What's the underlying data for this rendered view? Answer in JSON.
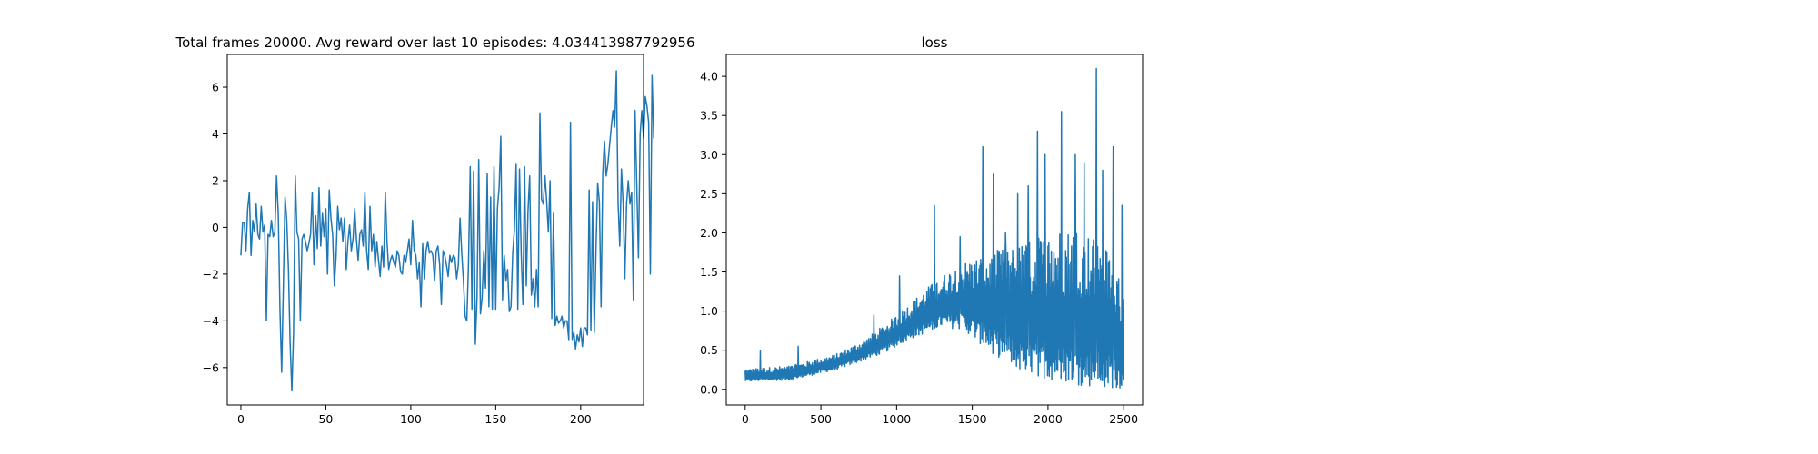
{
  "chart_data": [
    {
      "type": "line",
      "title": "Total frames 20000. Avg reward over last 10 episodes: 4.034413987792956",
      "xlabel": "",
      "ylabel": "",
      "xlim": [
        -8,
        237
      ],
      "ylim": [
        -7.6,
        7.4
      ],
      "xticks": [
        0,
        50,
        100,
        150,
        200
      ],
      "yticks": [
        -6,
        -4,
        -2,
        0,
        2,
        4,
        6
      ],
      "grid": false,
      "legend": "none",
      "color": "#1f77b4",
      "series": [
        {
          "values": [
            -1.2,
            0.2,
            0.2,
            -1.0,
            0.8,
            1.5,
            -1.2,
            0.3,
            -0.2,
            1.0,
            -0.3,
            -0.5,
            0.9,
            -0.2,
            0.1,
            -4.0,
            -0.3,
            -0.4,
            0.3,
            -0.4,
            -0.2,
            2.2,
            0.6,
            -3.5,
            -6.2,
            -2.5,
            1.3,
            0.3,
            -1.8,
            -5.0,
            -7.0,
            -4.5,
            2.2,
            -0.2,
            -0.5,
            -4.0,
            -0.5,
            -0.3,
            -0.6,
            -1.0,
            -0.7,
            -0.3,
            1.5,
            -1.6,
            0.5,
            -0.9,
            1.7,
            -0.8,
            0.6,
            -0.4,
            0.8,
            -2.0,
            1.6,
            0.4,
            -0.3,
            -2.5,
            -1.3,
            0.9,
            -0.1,
            0.4,
            -0.6,
            0.4,
            -1.8,
            -0.6,
            0.1,
            -1.0,
            -0.5,
            0.8,
            -0.5,
            -1.4,
            -0.3,
            -0.1,
            -0.8,
            1.5,
            -1.0,
            -1.8,
            0.9,
            -1.0,
            -0.3,
            -1.7,
            -0.6,
            -1.4,
            -2.1,
            -0.8,
            -1.7,
            1.5,
            -0.6,
            -1.8,
            -1.4,
            -1.2,
            -1.5,
            -1.7,
            -1.0,
            -1.2,
            -1.9,
            -2.0,
            -1.2,
            -1.5,
            -1.0,
            -0.5,
            -1.6,
            0.3,
            -1.0,
            -1.2,
            -2.2,
            -1.5,
            -3.4,
            -0.7,
            -2.2,
            -1.0,
            -0.6,
            -1.1,
            -1.0,
            -1.2,
            -2.3,
            -1.0,
            -0.8,
            -1.6,
            -3.3,
            -1.0,
            -1.2,
            -1.6,
            -2.1,
            -1.2,
            -1.5,
            -1.2,
            -1.3,
            -2.2,
            -1.6,
            0.4,
            -1.1,
            -2.3,
            -3.8,
            -4.0,
            -1.5,
            2.6,
            -3.5,
            2.4,
            -5.0,
            -3.0,
            2.9,
            -3.7,
            -3.0,
            -1.0,
            -2.6,
            2.3,
            -3.4,
            1.3,
            -3.5,
            2.6,
            -3.5,
            0.8,
            1.7,
            3.9,
            -3.1,
            -1.2,
            -2.3,
            -1.8,
            -3.6,
            -3.4,
            -1.1,
            -0.1,
            2.7,
            -3.5,
            2.5,
            -1.1,
            -3.3,
            2.6,
            -2.5,
            0.7,
            2.2,
            -2.9,
            -2.2,
            -3.4,
            -1.8,
            -3.4,
            4.9,
            1.2,
            1.0,
            2.2,
            1.1,
            -0.2,
            2.0,
            -3.9,
            0.6,
            -4.2,
            -3.8,
            -4.1,
            -4.0,
            -3.8,
            -4.3,
            -4.0,
            -4.0,
            -4.8,
            4.5,
            -4.8,
            -4.5,
            -5.2,
            -4.6,
            -4.9,
            -4.3,
            -5.1,
            -4.3,
            -4.3,
            -4.6,
            1.6,
            -4.4,
            1.1,
            -4.5,
            -1.0,
            1.9,
            1.1,
            -3.4,
            2.3,
            3.7,
            2.2,
            2.7,
            3.5,
            4.3,
            5.0,
            4.3,
            6.7,
            1.1,
            -0.8,
            2.5,
            1.0,
            -2.2,
            1.0,
            2.0,
            1.0,
            1.5,
            -3.1,
            5.0,
            1.8,
            -1.3,
            4.0,
            5.0,
            3.8,
            5.6,
            5.2,
            4.5,
            -2.0,
            6.5,
            3.8
          ]
        }
      ]
    },
    {
      "type": "line",
      "title": "loss",
      "xlabel": "",
      "ylabel": "",
      "xlim": [
        -125,
        2625
      ],
      "ylim": [
        -0.2,
        4.28
      ],
      "xticks": [
        0,
        500,
        1000,
        1500,
        2000,
        2500
      ],
      "yticks": [
        "0.0",
        "0.5",
        "1.0",
        "1.5",
        "2.0",
        "2.5",
        "3.0",
        "3.5",
        "4.0"
      ],
      "grid": false,
      "legend": "none",
      "color": "#1f77b4",
      "series": [
        {
          "x_range": [
            0,
            2500
          ],
          "baseline": [
            [
              0,
              0.1
            ],
            [
              300,
              0.12
            ],
            [
              600,
              0.25
            ],
            [
              900,
              0.45
            ],
            [
              1100,
              0.65
            ],
            [
              1300,
              0.8
            ],
            [
              1450,
              0.75
            ],
            [
              1600,
              0.5
            ],
            [
              1800,
              0.25
            ],
            [
              2000,
              0.12
            ],
            [
              2200,
              0.05
            ],
            [
              2350,
              0.02
            ],
            [
              2500,
              0.01
            ]
          ],
          "envelope": [
            [
              0,
              0.26
            ],
            [
              300,
              0.3
            ],
            [
              600,
              0.45
            ],
            [
              800,
              0.65
            ],
            [
              1000,
              0.95
            ],
            [
              1200,
              1.3
            ],
            [
              1400,
              1.6
            ],
            [
              1600,
              1.75
            ],
            [
              1800,
              1.85
            ],
            [
              2000,
              2.0
            ],
            [
              2200,
              2.1
            ],
            [
              2400,
              1.8
            ],
            [
              2500,
              1.3
            ]
          ],
          "peaks": [
            [
              100,
              0.49
            ],
            [
              350,
              0.55
            ],
            [
              850,
              0.95
            ],
            [
              1020,
              1.45
            ],
            [
              1250,
              2.35
            ],
            [
              1420,
              1.95
            ],
            [
              1570,
              3.1
            ],
            [
              1640,
              2.75
            ],
            [
              1720,
              2.0
            ],
            [
              1800,
              2.5
            ],
            [
              1870,
              2.6
            ],
            [
              1930,
              3.3
            ],
            [
              1980,
              3.0
            ],
            [
              2090,
              3.55
            ],
            [
              2180,
              3.0
            ],
            [
              2240,
              2.9
            ],
            [
              2320,
              4.1
            ],
            [
              2360,
              2.8
            ],
            [
              2430,
              3.1
            ],
            [
              2490,
              2.35
            ]
          ]
        }
      ]
    }
  ]
}
